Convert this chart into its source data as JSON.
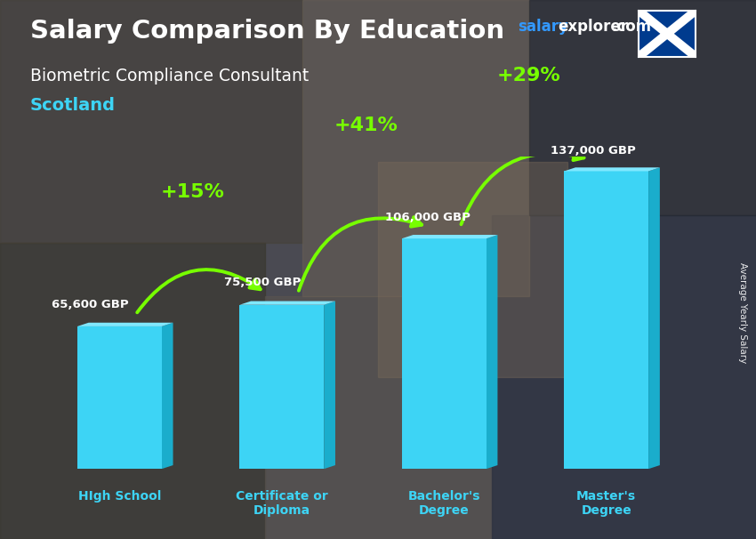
{
  "title": "Salary Comparison By Education",
  "subtitle": "Biometric Compliance Consultant",
  "location": "Scotland",
  "watermark_salary": "salary",
  "watermark_explorer": "explorer",
  "watermark_com": ".com",
  "ylabel": "Average Yearly Salary",
  "categories": [
    "HIgh School",
    "Certificate or\nDiploma",
    "Bachelor's\nDegree",
    "Master's\nDegree"
  ],
  "values": [
    65600,
    75500,
    106000,
    137000
  ],
  "value_labels": [
    "65,600 GBP",
    "75,500 GBP",
    "106,000 GBP",
    "137,000 GBP"
  ],
  "pct_labels": [
    "+15%",
    "+41%",
    "+29%"
  ],
  "bar_color_face": "#3DD4F5",
  "bar_color_side": "#1AADCC",
  "bar_color_top": "#80E8FF",
  "bg_color": "#4a4a52",
  "title_color": "#FFFFFF",
  "subtitle_color": "#FFFFFF",
  "location_color": "#3DD4F5",
  "pct_color": "#77FF00",
  "value_label_color": "#FFFFFF",
  "xlabel_color": "#3DD4F5",
  "watermark_blue": "#3399FF",
  "watermark_white": "#FFFFFF",
  "ylabel_color": "#FFFFFF"
}
